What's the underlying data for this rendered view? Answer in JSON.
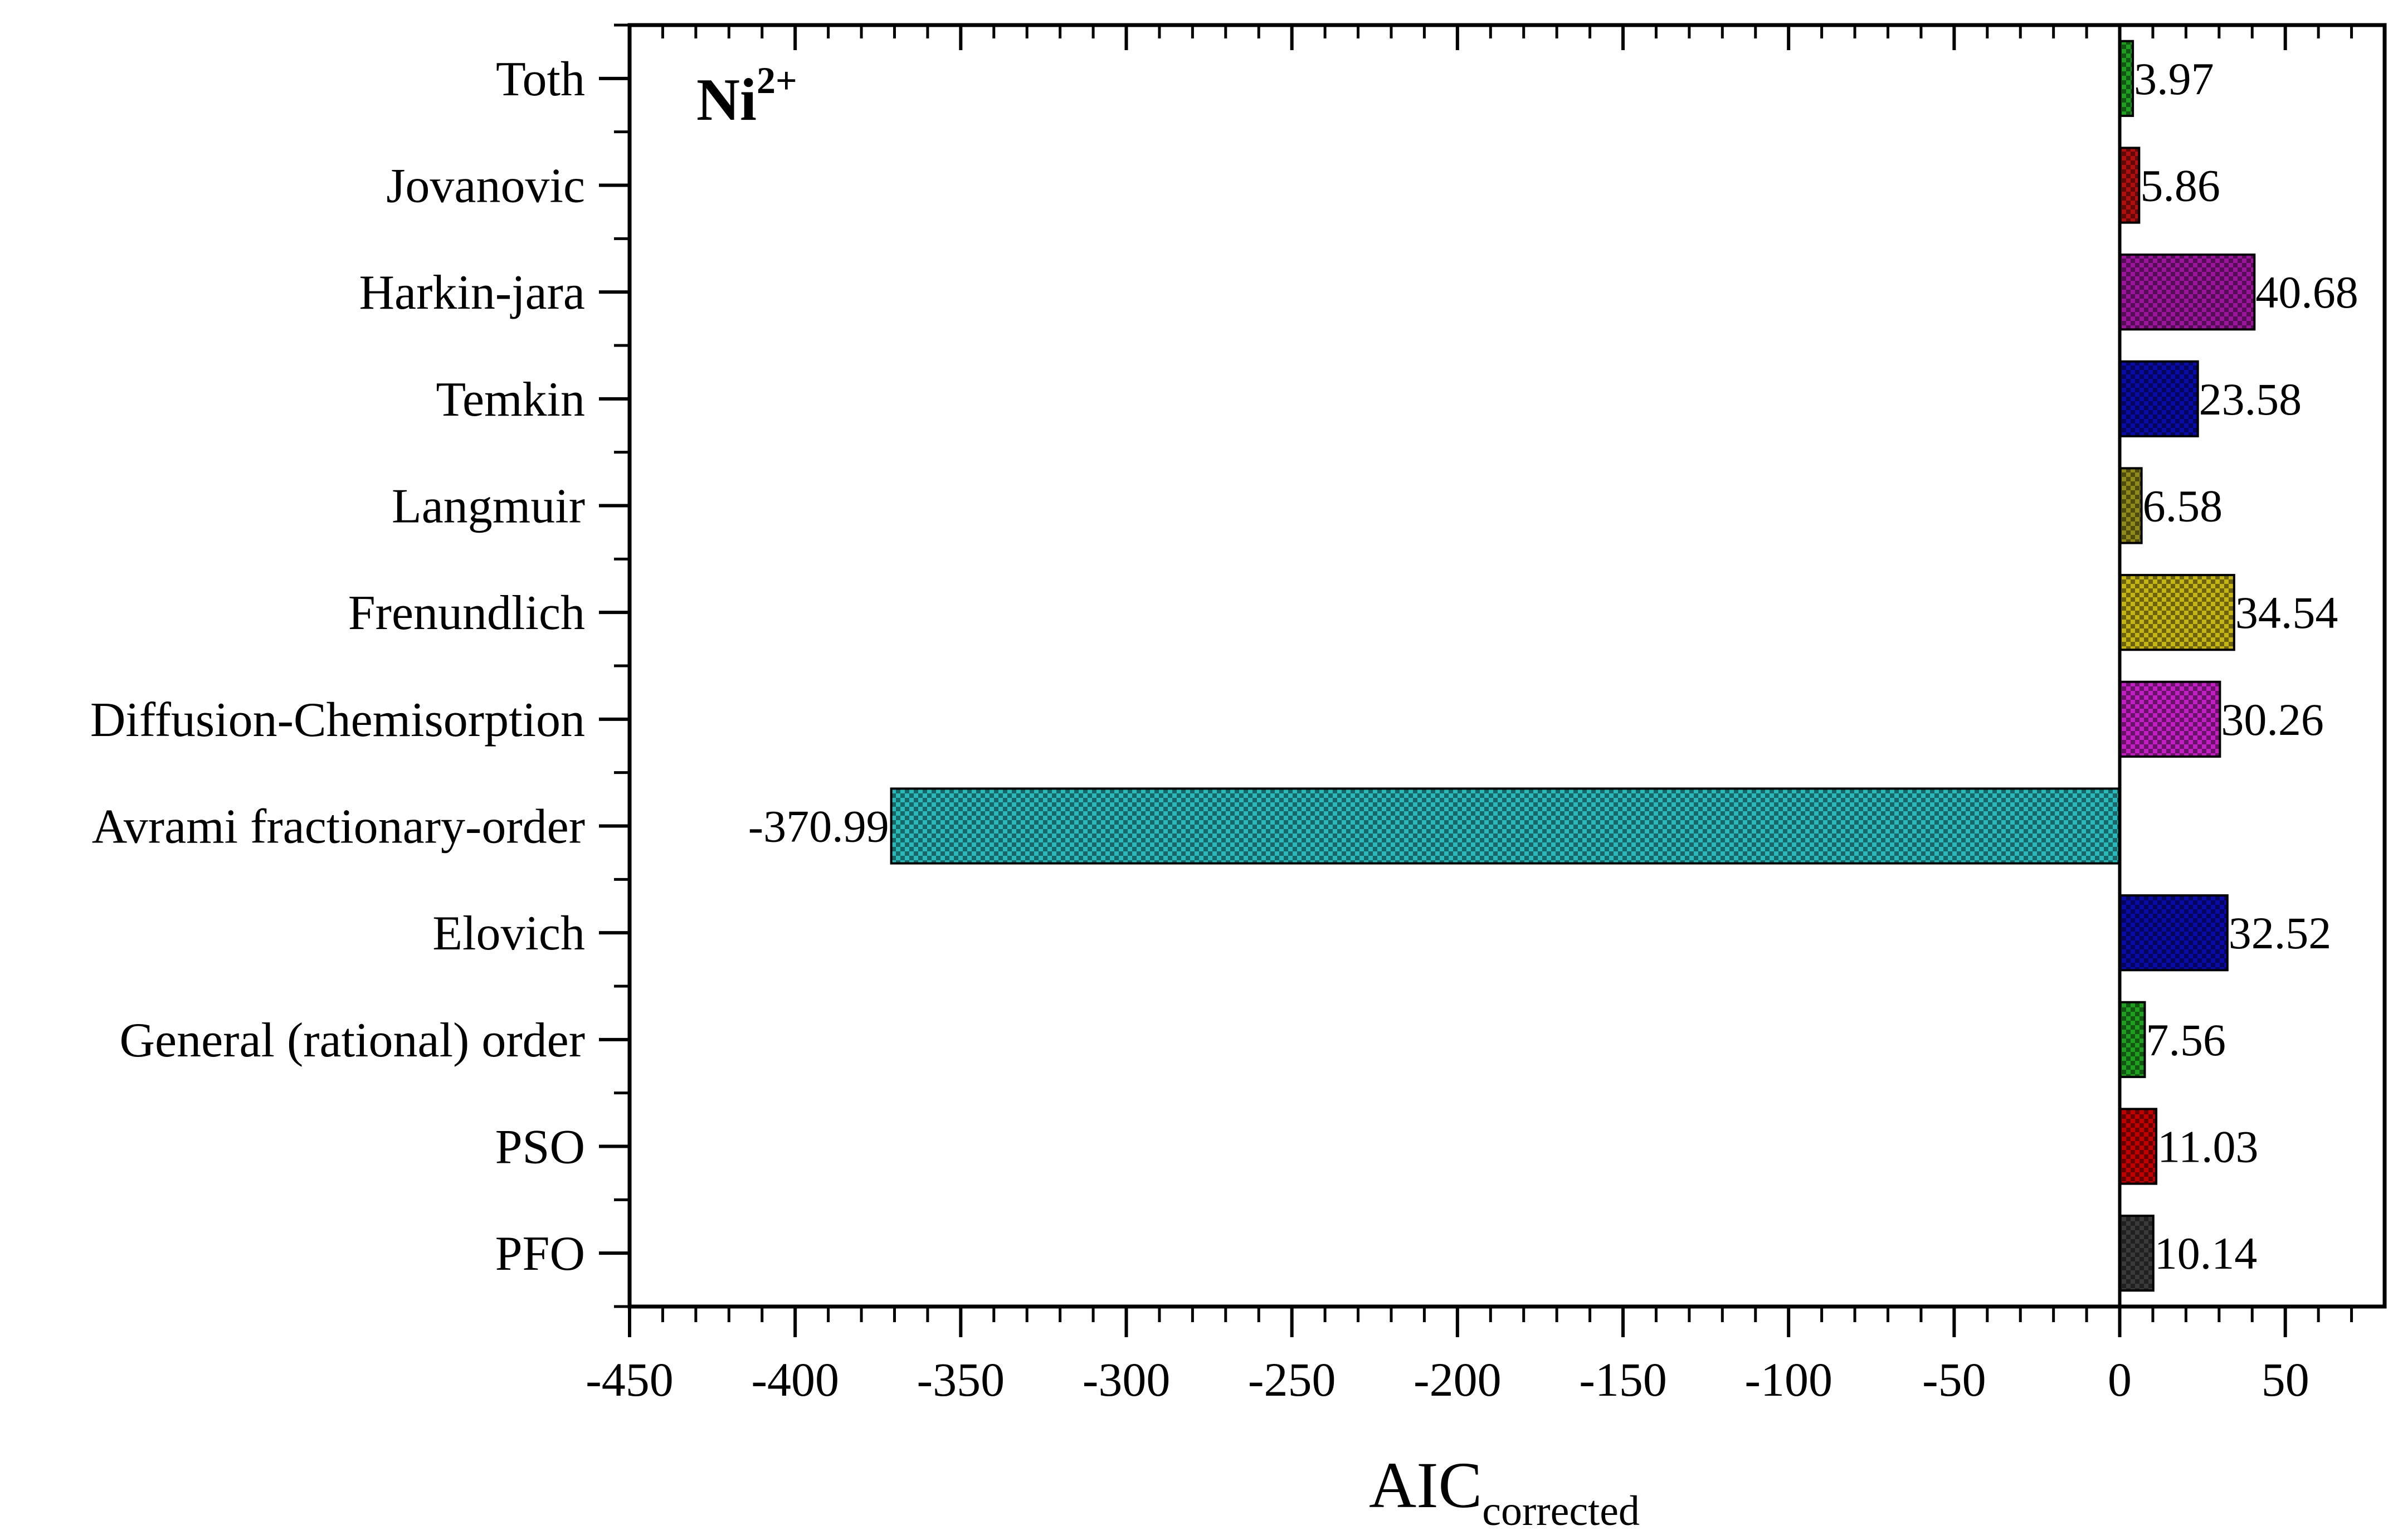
{
  "chart_data": {
    "type": "bar",
    "orientation": "horizontal",
    "categories": [
      "PFO",
      "PSO",
      "General (rational) order",
      "Elovich",
      "Avrami fractionary-order",
      "Diffusion-Chemisorption",
      "Frenundlich",
      "Langmuir",
      "Temkin",
      "Harkin-jara",
      "Jovanovic",
      "Toth"
    ],
    "values": [
      10.14,
      11.03,
      7.56,
      32.52,
      -370.99,
      30.26,
      34.54,
      6.58,
      23.58,
      40.68,
      5.86,
      3.97
    ],
    "value_labels": [
      "10.14",
      "11.03",
      "7.56",
      "32.52",
      "-370.99",
      "30.26",
      "34.54",
      "6.58",
      "23.58",
      "40.68",
      "5.86",
      "3.97"
    ],
    "colors": [
      "#3a3a3a",
      "#c00000",
      "#1f9e1f",
      "#0a0aa6",
      "#2ab8b8",
      "#c21fc2",
      "#c4b416",
      "#8f8a1a",
      "#0a0aa6",
      "#9c149c",
      "#b01010",
      "#1f9e1f"
    ],
    "annotation": {
      "main": "Ni",
      "sup": "2+"
    },
    "xlabel": {
      "main": "AIC",
      "sub": "corrected"
    },
    "xlim": [
      -450,
      80
    ],
    "xticks": [
      -450,
      -400,
      -350,
      -300,
      -250,
      -200,
      -150,
      -100,
      -50,
      0,
      50
    ],
    "xtick_labels": [
      "-450",
      "-400",
      "-350",
      "-300",
      "-250",
      "-200",
      "-150",
      "-100",
      "-50",
      "0",
      "50"
    ],
    "bar_pattern": "checkered",
    "grid": false
  }
}
